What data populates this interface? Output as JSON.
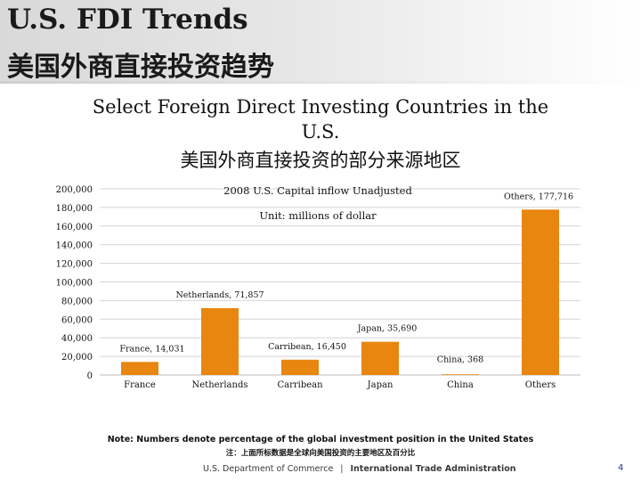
{
  "header": {
    "title_en": "U.S. FDI Trends",
    "title_cn": "美国外商直接投资趋势"
  },
  "subtitle": {
    "line1": "Select Foreign Direct Investing Countries in the",
    "line2": "U.S.",
    "line3": "美国外商直接投资的部分来源地区"
  },
  "chart_data": {
    "type": "bar",
    "title": "2008 U.S. Capital inflow Unadjusted",
    "subtitle": "Unit: millions of dollar",
    "xlabel": "",
    "ylabel": "",
    "categories": [
      "France",
      "Netherlands",
      "Carribean",
      "Japan",
      "China",
      "Others"
    ],
    "values": [
      14031,
      71857,
      16450,
      35690,
      368,
      177716
    ],
    "data_labels": [
      "France, 14,031",
      "Netherlands, 71,857",
      "Carribean, 16,450",
      "Japan, 35,690",
      "China, 368",
      "Others, 177,716"
    ],
    "ylim": [
      0,
      200000
    ],
    "yticks": [
      0,
      20000,
      40000,
      60000,
      80000,
      100000,
      120000,
      140000,
      160000,
      180000,
      200000
    ],
    "ytick_labels": [
      "0",
      "20,000",
      "40,000",
      "60,000",
      "80,000",
      "100,000",
      "120,000",
      "140,000",
      "160,000",
      "180,000",
      "200,000"
    ],
    "grid": true,
    "bar_color": "#e8860f",
    "grid_color": "#d4d4d4"
  },
  "notes": {
    "line1": "Note: Numbers denote percentage of the global investment position in the United States",
    "line2": "注：上面所标数据是全球向美国投资的主要地区及百分比"
  },
  "footer": {
    "department": "U.S. Department of Commerce",
    "separator": "|",
    "agency": "International Trade Administration",
    "page": "4"
  }
}
